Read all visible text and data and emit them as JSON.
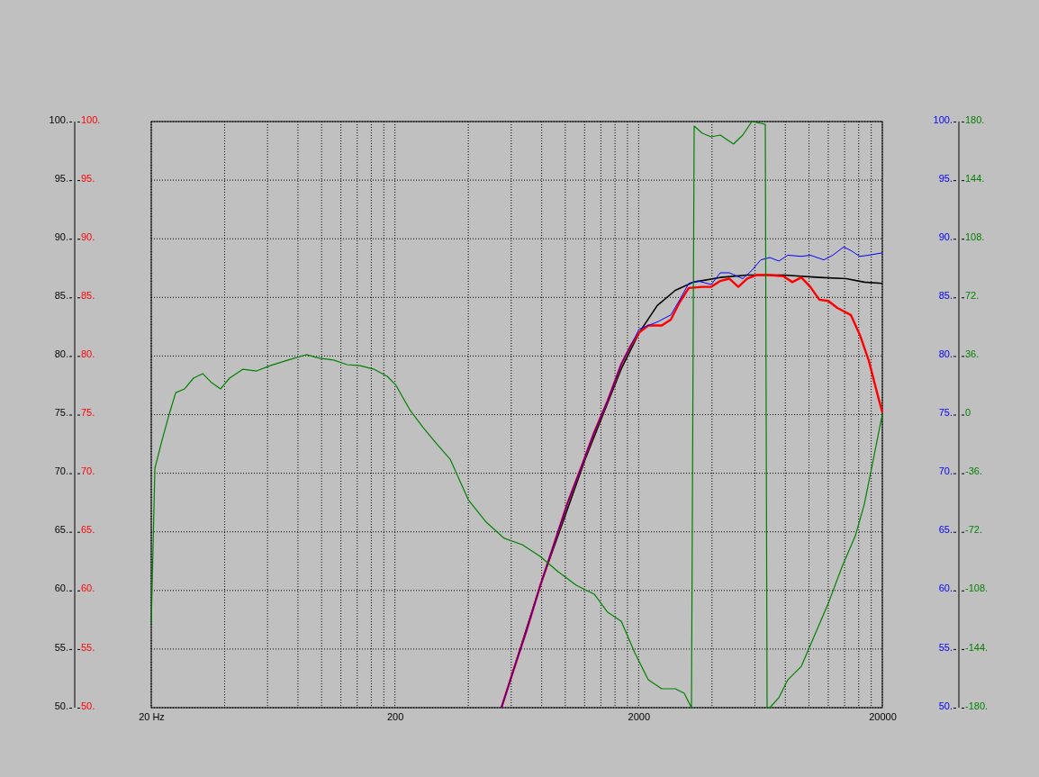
{
  "chart_data": {
    "type": "line",
    "log": "x",
    "grid": true,
    "marker": "none",
    "line_style": "solid",
    "xlim": [
      20,
      20000
    ],
    "xticks": [
      {
        "value": 20,
        "label": "20 Hz"
      },
      {
        "value": 40,
        "label": null
      },
      {
        "value": 60,
        "label": null
      },
      {
        "value": 80,
        "label": null
      },
      {
        "value": 100,
        "label": null
      },
      {
        "value": 120,
        "label": null
      },
      {
        "value": 140,
        "label": null
      },
      {
        "value": 160,
        "label": null
      },
      {
        "value": 180,
        "label": null
      },
      200,
      {
        "value": 400,
        "label": null
      },
      {
        "value": 600,
        "label": null
      },
      {
        "value": 800,
        "label": null
      },
      {
        "value": 1000,
        "label": null
      },
      {
        "value": 1200,
        "label": null
      },
      {
        "value": 1400,
        "label": null
      },
      {
        "value": 1600,
        "label": null
      },
      {
        "value": 1800,
        "label": null
      },
      2000,
      {
        "value": 4000,
        "label": null
      },
      {
        "value": 6000,
        "label": null
      },
      {
        "value": 8000,
        "label": null
      },
      {
        "value": 10000,
        "label": null
      },
      {
        "value": 12000,
        "label": null
      },
      {
        "value": 14000,
        "label": null
      },
      {
        "value": 16000,
        "label": null
      },
      {
        "value": 18000,
        "label": null
      },
      20000
    ],
    "ylim": [
      50,
      100
    ],
    "yticks": [
      {
        "value": 50,
        "label": "50."
      },
      {
        "value": 55,
        "label": "55."
      },
      {
        "value": 60,
        "label": "60."
      },
      {
        "value": 65,
        "label": "65."
      },
      {
        "value": 70,
        "label": "70."
      },
      {
        "value": 75,
        "label": "75."
      },
      {
        "value": 80,
        "label": "80."
      },
      {
        "value": 85,
        "label": "85."
      },
      {
        "value": 90,
        "label": "90."
      },
      {
        "value": 95,
        "label": "95."
      },
      {
        "value": 100,
        "label": "100."
      }
    ],
    "y2lim": [
      50,
      100
    ],
    "y2ticks": [
      {
        "value": 50,
        "label": "50."
      },
      {
        "value": 55,
        "label": "55."
      },
      {
        "value": 60,
        "label": "60."
      },
      {
        "value": 65,
        "label": "65."
      },
      {
        "value": 70,
        "label": "70."
      },
      {
        "value": 75,
        "label": "75."
      },
      {
        "value": 80,
        "label": "80."
      },
      {
        "value": 85,
        "label": "85."
      },
      {
        "value": 90,
        "label": "90."
      },
      {
        "value": 95,
        "label": "95."
      },
      {
        "value": 100,
        "label": "100."
      }
    ],
    "y3lim": [
      -180,
      180
    ],
    "y3ticks": [
      {
        "value": -180,
        "label": "-180."
      },
      {
        "value": -144,
        "label": "-144."
      },
      {
        "value": -108,
        "label": "-108."
      },
      {
        "value": -72,
        "label": "-72."
      },
      {
        "value": -36,
        "label": "-36."
      },
      0,
      {
        "value": 36,
        "label": "36."
      },
      {
        "value": 72,
        "label": "72."
      },
      {
        "value": 108,
        "label": "108."
      },
      {
        "value": 144,
        "label": "144."
      },
      {
        "value": 180,
        "label": "180."
      }
    ],
    "series": [
      {
        "color": "#000000",
        "x": [
          547,
          789,
          1207,
          1697,
          2011,
          2384,
          2827,
          3350,
          4325,
          5584,
          7846,
          11026,
          14230,
          16874,
          20000
        ],
        "values": [
          50.0,
          60.4,
          71.2,
          78.9,
          82.0,
          84.3,
          85.6,
          86.3,
          86.7,
          86.9,
          86.9,
          86.7,
          86.6,
          86.3,
          86.2
        ]
      },
      {
        "color": "#ff0000",
        "x": [
          547,
          611,
          694,
          789,
          897,
          1019,
          1157,
          1315,
          1493,
          1697,
          1847,
          2011,
          2190,
          2488,
          2710,
          2950,
          3211,
          3648,
          3972,
          4325,
          4709,
          5127,
          5584,
          6081,
          6907,
          7846,
          8544,
          9302,
          10126,
          11026,
          12006,
          13072,
          14852,
          16170,
          17604,
          19168,
          20000
        ],
        "values": [
          50.0,
          53.1,
          56.6,
          60.4,
          63.9,
          67.4,
          70.4,
          73.5,
          76.2,
          79.3,
          80.8,
          82.0,
          82.6,
          82.6,
          83.1,
          84.6,
          85.8,
          85.9,
          85.9,
          86.4,
          86.6,
          85.9,
          86.6,
          86.9,
          86.9,
          86.8,
          86.3,
          86.7,
          85.9,
          84.8,
          84.7,
          84.1,
          83.5,
          81.8,
          79.6,
          76.6,
          75.2
        ]
      },
      {
        "color": "#0000ff",
        "axis": "y2",
        "x": [
          547,
          611,
          694,
          789,
          897,
          1019,
          1157,
          1315,
          1493,
          1697,
          1847,
          2011,
          2384,
          2710,
          2950,
          3211,
          3496,
          3972,
          4325,
          4709,
          5350,
          5827,
          6342,
          6907,
          7520,
          8188,
          9302,
          10126,
          11506,
          12528,
          13870,
          14852,
          16170,
          17604,
          20000
        ],
        "values": [
          50.0,
          53.1,
          56.6,
          60.4,
          63.9,
          67.4,
          70.4,
          73.5,
          76.2,
          79.3,
          80.8,
          82.3,
          82.9,
          83.5,
          84.8,
          86.2,
          86.4,
          86.1,
          87.1,
          87.1,
          86.6,
          87.3,
          88.2,
          88.4,
          88.1,
          88.6,
          88.5,
          88.6,
          88.2,
          88.6,
          89.3,
          89.0,
          88.5,
          88.6,
          88.8
        ]
      },
      {
        "color": "#008000",
        "axis": "y3",
        "x": [
          20,
          20.7,
          22.1,
          23.7,
          25.2,
          27.4,
          29.8,
          32.5,
          35.4,
          38.5,
          41.9,
          47.6,
          54.1,
          61.5,
          72.9,
          86.4,
          98.2,
          112,
          127,
          144,
          164,
          186,
          202,
          230,
          261,
          297,
          337,
          400,
          474,
          562,
          666,
          789,
          935,
          1109,
          1315,
          1493,
          1697,
          1928,
          2190,
          2488,
          2827,
          3078,
          3294,
          3380,
          3648,
          3972,
          4325,
          4900,
          5350,
          5827,
          6342,
          6618,
          6732,
          6907,
          7520,
          8188,
          9302,
          10568,
          12006,
          13642,
          15498,
          16874,
          18372,
          20000
        ],
        "values": [
          -128.6,
          -32.9,
          -16.3,
          0.3,
          13.5,
          15.8,
          22.4,
          25.2,
          19.6,
          15.8,
          22.4,
          27.9,
          26.8,
          30.1,
          33.5,
          36.8,
          34.6,
          33.5,
          30.7,
          30.1,
          27.9,
          23.5,
          18.0,
          3.0,
          -8.0,
          -18.0,
          -27.4,
          -52.3,
          -66.1,
          -76.0,
          -79.9,
          -87.1,
          -96.5,
          -104.8,
          -110.3,
          -121.4,
          -126.9,
          -146.3,
          -162.9,
          -168.4,
          -168.4,
          -171.2,
          -180,
          177.2,
          172.8,
          170.6,
          171.7,
          166.2,
          171.7,
          180,
          178.9,
          178.3,
          -180,
          -180,
          -173.9,
          -162.9,
          -154.6,
          -135.2,
          -115.9,
          -93.7,
          -74.4,
          -55.0,
          -27.4,
          0.3
        ]
      }
    ]
  }
}
